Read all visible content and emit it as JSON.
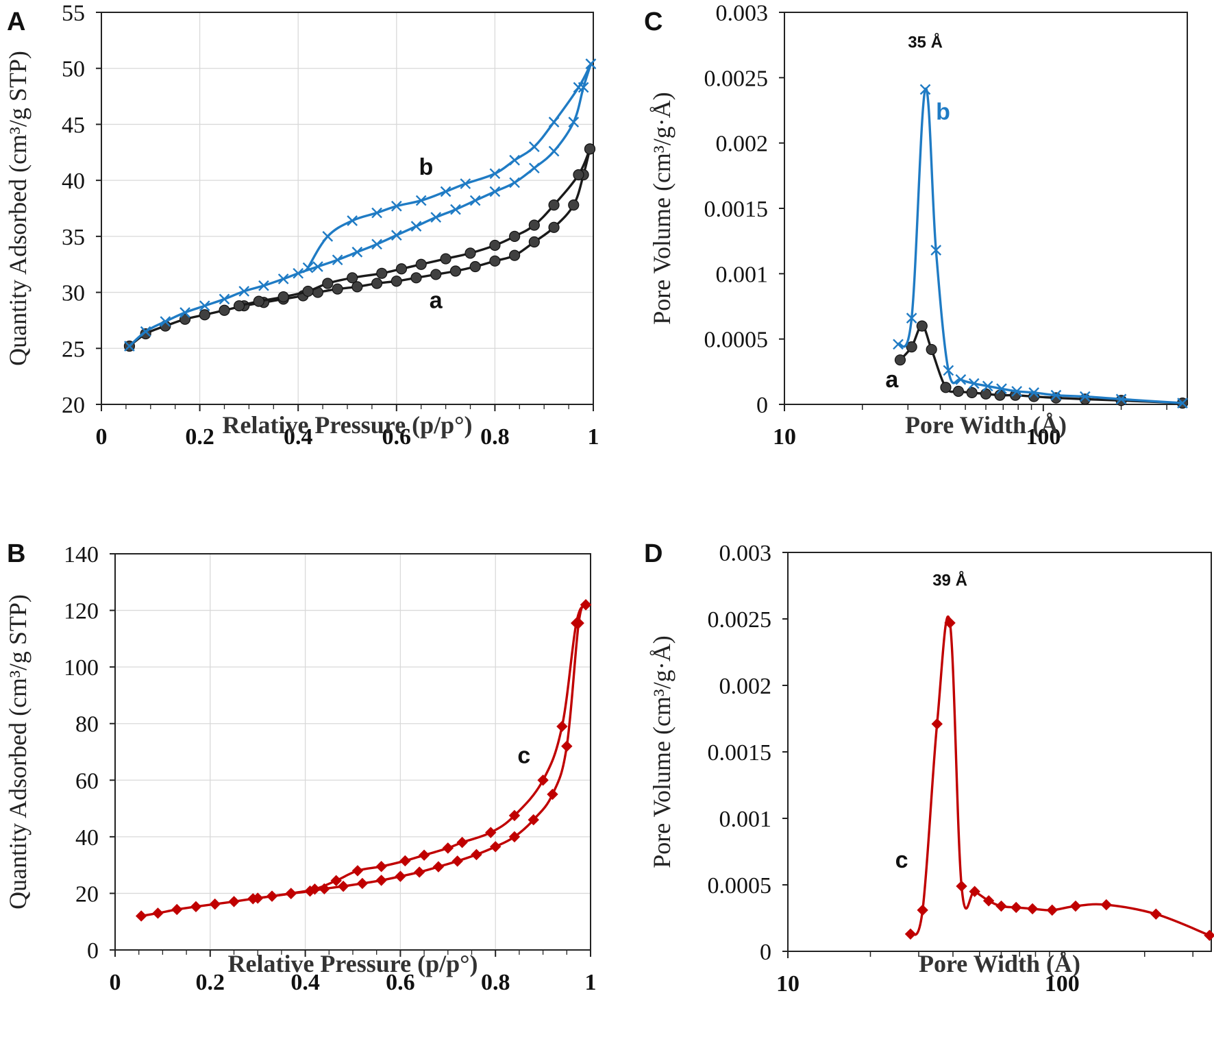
{
  "chart_data": [
    {
      "id": "A",
      "panel_letter": "A",
      "type": "line",
      "xlabel": "Relative Pressure (p/p°)",
      "ylabel": "Quantity Adsorbed (cm³/g STP)",
      "xlim": [
        0,
        1
      ],
      "ylim": [
        20,
        55
      ],
      "xticks": [
        0,
        0.2,
        0.4,
        0.6,
        0.8,
        1
      ],
      "xtick_labels": [
        "0",
        "0.2",
        "0.4",
        "0.6",
        "0.8",
        "1"
      ],
      "yticks": [
        20,
        25,
        30,
        35,
        40,
        45,
        50,
        55
      ],
      "ytick_labels": [
        "20",
        "25",
        "30",
        "35",
        "40",
        "45",
        "50",
        "55"
      ],
      "xscale": "linear",
      "grid": true,
      "series": [
        {
          "name": "a",
          "color": "#1a1a1a",
          "marker": "circle",
          "marker_color": "#404040",
          "adsorption": {
            "x": [
              0.057,
              0.09,
              0.13,
              0.17,
              0.21,
              0.25,
              0.29,
              0.33,
              0.37,
              0.41,
              0.44,
              0.48,
              0.52,
              0.56,
              0.6,
              0.64,
              0.68,
              0.72,
              0.76,
              0.8,
              0.84,
              0.88,
              0.92,
              0.96,
              0.98,
              0.993
            ],
            "y": [
              25.2,
              26.3,
              27.0,
              27.6,
              28.0,
              28.4,
              28.8,
              29.1,
              29.4,
              29.7,
              30.0,
              30.3,
              30.5,
              30.8,
              31.0,
              31.3,
              31.6,
              31.9,
              32.3,
              32.8,
              33.3,
              34.5,
              35.8,
              37.8,
              40.5,
              42.8
            ]
          },
          "desorption": {
            "x": [
              0.993,
              0.97,
              0.92,
              0.88,
              0.84,
              0.8,
              0.75,
              0.7,
              0.65,
              0.61,
              0.57,
              0.51,
              0.46,
              0.42,
              0.37,
              0.32,
              0.28
            ],
            "y": [
              42.8,
              40.5,
              37.8,
              36.0,
              35.0,
              34.2,
              33.5,
              33.0,
              32.5,
              32.1,
              31.7,
              31.3,
              30.8,
              30.1,
              29.6,
              29.2,
              28.8
            ]
          }
        },
        {
          "name": "b",
          "color": "#1f7bc4",
          "marker": "x",
          "adsorption": {
            "x": [
              0.057,
              0.09,
              0.13,
              0.17,
              0.21,
              0.25,
              0.29,
              0.33,
              0.37,
              0.4,
              0.44,
              0.48,
              0.52,
              0.56,
              0.6,
              0.64,
              0.68,
              0.72,
              0.76,
              0.8,
              0.84,
              0.88,
              0.92,
              0.96,
              0.98,
              0.995
            ],
            "y": [
              25.2,
              26.5,
              27.4,
              28.2,
              28.8,
              29.4,
              30.1,
              30.6,
              31.2,
              31.7,
              32.3,
              32.9,
              33.6,
              34.3,
              35.1,
              35.9,
              36.7,
              37.4,
              38.2,
              39.0,
              39.8,
              41.1,
              42.6,
              45.2,
              48.3,
              50.4
            ]
          },
          "desorption": {
            "x": [
              0.995,
              0.97,
              0.92,
              0.88,
              0.84,
              0.8,
              0.74,
              0.7,
              0.65,
              0.6,
              0.56,
              0.51,
              0.46,
              0.42
            ],
            "y": [
              50.4,
              48.3,
              45.2,
              43.0,
              41.8,
              40.6,
              39.7,
              39.0,
              38.2,
              37.7,
              37.1,
              36.4,
              35.0,
              32.2
            ]
          }
        }
      ],
      "annotations": [
        {
          "text": "b",
          "color": "#111111",
          "x": 0.66,
          "y": 40.5
        },
        {
          "text": "a",
          "color": "#111111",
          "x": 0.68,
          "y": 28.6
        }
      ]
    },
    {
      "id": "C",
      "panel_letter": "C",
      "type": "line",
      "xlabel": "Pore Width (Å)",
      "ylabel": "Pore Volume (cm³/g·Å)",
      "xlim": [
        10,
        360
      ],
      "ylim": [
        0,
        0.003
      ],
      "xticks": [
        10,
        100
      ],
      "xtick_labels": [
        "10",
        "100"
      ],
      "xminor": [
        20,
        30,
        40,
        50,
        60,
        70,
        80,
        90,
        200,
        300
      ],
      "yticks": [
        0,
        0.0005,
        0.001,
        0.0015,
        0.002,
        0.0025,
        0.003
      ],
      "ytick_labels": [
        "0",
        "0.0005",
        "0.001",
        "0.0015",
        "0.002",
        "0.0025",
        "0.003"
      ],
      "xscale": "log",
      "grid": false,
      "series": [
        {
          "name": "a",
          "color": "#1a1a1a",
          "marker": "circle",
          "marker_color": "#404040",
          "x": [
            28,
            31,
            34,
            37,
            42,
            47,
            53,
            60,
            68,
            78,
            92,
            112,
            145,
            200,
            345
          ],
          "y": [
            0.00034,
            0.00044,
            0.0006,
            0.00042,
            0.00013,
            0.0001,
            9e-05,
            8e-05,
            7e-05,
            7e-05,
            6e-05,
            5e-05,
            4e-05,
            3e-05,
            1e-05
          ]
        },
        {
          "name": "b",
          "color": "#1f7bc4",
          "marker": "x",
          "x": [
            27.5,
            31,
            35,
            38.5,
            43,
            48,
            54,
            61,
            69,
            79,
            92,
            112,
            145,
            200,
            345
          ],
          "y": [
            0.00046,
            0.00066,
            0.00241,
            0.00118,
            0.00026,
            0.00019,
            0.00016,
            0.00014,
            0.00012,
            0.0001,
            9e-05,
            7e-05,
            6e-05,
            4e-05,
            1e-05
          ]
        }
      ],
      "annotations": [
        {
          "text": "35 Å",
          "color": "#111111",
          "x": 35,
          "y": 0.00273,
          "style": "peak"
        },
        {
          "text": "b",
          "color": "#1f7bc4",
          "x": 41,
          "y": 0.00218
        },
        {
          "text": "a",
          "color": "#111111",
          "x": 26,
          "y": 0.00013
        }
      ]
    },
    {
      "id": "B",
      "panel_letter": "B",
      "type": "line",
      "xlabel": "Relative Pressure (p/p°)",
      "ylabel": "Quantity Adsorbed (cm³/g STP)",
      "xlim": [
        0,
        1
      ],
      "ylim": [
        0,
        140
      ],
      "xticks": [
        0,
        0.2,
        0.4,
        0.6,
        0.8,
        1
      ],
      "xtick_labels": [
        "0",
        "0.2",
        "0.4",
        "0.6",
        "0.8",
        "1"
      ],
      "yticks": [
        0,
        20,
        40,
        60,
        80,
        100,
        120,
        140
      ],
      "ytick_labels": [
        "0",
        "20",
        "40",
        "60",
        "80",
        "100",
        "120",
        "140"
      ],
      "xscale": "linear",
      "grid": true,
      "series": [
        {
          "name": "c",
          "color": "#c00000",
          "marker": "diamond",
          "adsorption": {
            "x": [
              0.055,
              0.09,
              0.13,
              0.17,
              0.21,
              0.25,
              0.29,
              0.33,
              0.37,
              0.41,
              0.44,
              0.48,
              0.52,
              0.56,
              0.6,
              0.64,
              0.68,
              0.72,
              0.76,
              0.8,
              0.84,
              0.88,
              0.92,
              0.95,
              0.975,
              0.99
            ],
            "y": [
              12,
              13,
              14.3,
              15.3,
              16.2,
              17.1,
              18.1,
              19.0,
              19.9,
              20.8,
              21.6,
              22.5,
              23.5,
              24.6,
              26.0,
              27.5,
              29.4,
              31.4,
              33.7,
              36.5,
              40.0,
              46.0,
              55.0,
              72.0,
              115.5,
              122.0
            ]
          },
          "desorption": {
            "x": [
              0.99,
              0.97,
              0.94,
              0.9,
              0.84,
              0.79,
              0.73,
              0.7,
              0.65,
              0.61,
              0.56,
              0.51,
              0.465,
              0.42,
              0.37,
              0.33,
              0.3
            ],
            "y": [
              122.0,
              115.5,
              79.0,
              60.0,
              47.5,
              41.5,
              38.0,
              36.0,
              33.5,
              31.5,
              29.5,
              28.0,
              24.5,
              21.5,
              20.0,
              19.0,
              18.3
            ]
          }
        }
      ],
      "annotations": [
        {
          "text": "c",
          "color": "#111111",
          "x": 0.86,
          "y": 66
        }
      ]
    },
    {
      "id": "D",
      "panel_letter": "D",
      "type": "line",
      "xlabel": "Pore Width (Å)",
      "ylabel": "Pore Volume (cm³/g·Å)",
      "xlim": [
        10,
        350
      ],
      "ylim": [
        0,
        0.003
      ],
      "xticks": [
        10,
        100
      ],
      "xtick_labels": [
        "10",
        "100"
      ],
      "xminor": [
        20,
        30,
        40,
        50,
        60,
        70,
        80,
        90,
        200,
        300
      ],
      "yticks": [
        0,
        0.0005,
        0.001,
        0.0015,
        0.002,
        0.0025,
        0.003
      ],
      "ytick_labels": [
        "0",
        "0.0005",
        "0.001",
        "0.0015",
        "0.002",
        "0.0025",
        "0.003"
      ],
      "xscale": "log",
      "grid": false,
      "series": [
        {
          "name": "c",
          "color": "#c00000",
          "marker": "diamond",
          "x": [
            28,
            31,
            35,
            39,
            43,
            48,
            54,
            60,
            68,
            78,
            92,
            112,
            145,
            220,
            345
          ],
          "y": [
            0.00013,
            0.00031,
            0.00171,
            0.00247,
            0.00049,
            0.00045,
            0.00038,
            0.00034,
            0.00033,
            0.00032,
            0.00031,
            0.00034,
            0.00035,
            0.00028,
            0.00012
          ]
        }
      ],
      "annotations": [
        {
          "text": "39 Å",
          "color": "#111111",
          "x": 39,
          "y": 0.00275,
          "style": "peak"
        },
        {
          "text": "c",
          "color": "#111111",
          "x": 26,
          "y": 0.00063
        }
      ]
    }
  ]
}
